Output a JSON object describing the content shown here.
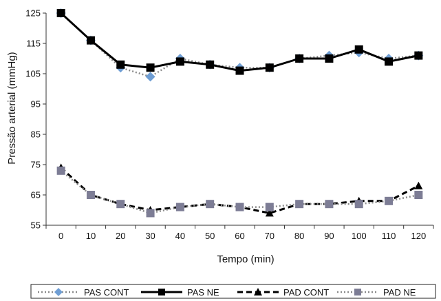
{
  "chart_data": {
    "type": "line",
    "xlabel": "Tempo (min)",
    "ylabel": "Pressão arterial (mmHg)",
    "x": [
      0,
      10,
      20,
      30,
      40,
      50,
      60,
      70,
      80,
      90,
      100,
      110,
      120
    ],
    "ylim": [
      55,
      125
    ],
    "yticks": [
      55,
      65,
      75,
      85,
      95,
      105,
      115,
      125
    ],
    "grid": false,
    "legend_position": "bottom",
    "series": [
      {
        "name": "PAS CONT",
        "values": [
          125,
          116,
          107,
          104,
          110,
          108,
          107,
          107,
          110,
          111,
          112,
          110,
          111
        ],
        "line": "dotted",
        "marker": "diamond",
        "color": "#6f9ed4",
        "line_color": "#8a8a8a"
      },
      {
        "name": "PAS NE",
        "values": [
          125,
          116,
          108,
          107,
          109,
          108,
          106,
          107,
          110,
          110,
          113,
          109,
          111
        ],
        "line": "solid",
        "marker": "square",
        "color": "#000000",
        "line_color": "#000000"
      },
      {
        "name": "PAD CONT",
        "values": [
          74,
          65,
          62,
          60,
          61,
          62,
          61,
          59,
          62,
          62,
          63,
          63,
          68
        ],
        "line": "dashed",
        "marker": "triangle",
        "color": "#000000",
        "line_color": "#000000"
      },
      {
        "name": "PAD NE",
        "values": [
          73,
          65,
          62,
          59,
          61,
          62,
          61,
          61,
          62,
          62,
          62,
          63,
          65
        ],
        "line": "dotted",
        "marker": "square",
        "color": "#7d7d95",
        "line_color": "#8a8a8a"
      }
    ]
  }
}
